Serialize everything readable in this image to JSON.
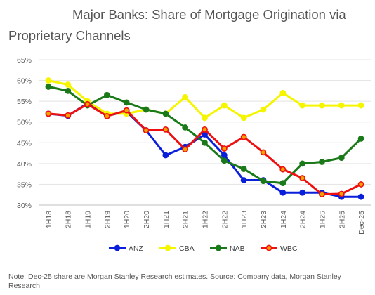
{
  "chart_data": {
    "type": "line",
    "title_line1": "Major Banks: Share of Mortgage Origination via",
    "title_line2": "Proprietary Channels",
    "categories": [
      "1H18",
      "2H18",
      "1H19",
      "2H19",
      "1H20",
      "2H20",
      "1H21",
      "2H21",
      "1H22",
      "2H22",
      "1H23",
      "2H23",
      "1H24",
      "2H24",
      "1H25",
      "2H25",
      "Dec-25"
    ],
    "y_ticks": [
      "65%",
      "60%",
      "55%",
      "50%",
      "45%",
      "40%",
      "35%",
      "30%"
    ],
    "ylim": [
      30,
      65
    ],
    "grid": true,
    "legend_position": "bottom",
    "series": [
      {
        "name": "ANZ",
        "color": "#0a1fd9",
        "marker_fill": "#0a1fd9",
        "values": [
          52,
          51.5,
          54.5,
          51.5,
          52.5,
          48,
          42,
          44,
          47,
          42,
          36,
          36,
          33,
          33,
          33,
          32,
          32
        ]
      },
      {
        "name": "CBA",
        "color": "#f5f500",
        "marker_fill": "#f5f500",
        "values": [
          60,
          59,
          55,
          52,
          52,
          53,
          52,
          56,
          51,
          54,
          51,
          53,
          57,
          54,
          54,
          54,
          54
        ]
      },
      {
        "name": "NAB",
        "color": "#1a7a1a",
        "marker_fill": "#1a7a1a",
        "values": [
          58.5,
          57.5,
          54,
          56.5,
          54.7,
          53,
          52,
          48.7,
          45,
          40.7,
          38.7,
          35.8,
          35.3,
          40,
          40.4,
          41.4,
          46
        ]
      },
      {
        "name": "WBC",
        "color": "#ee1010",
        "marker_fill": "#f5a000",
        "values": [
          52,
          51.6,
          54.3,
          51.4,
          52.8,
          48,
          48.2,
          43.4,
          48.2,
          43.6,
          46.4,
          42.7,
          38.6,
          36.5,
          32.6,
          32.7,
          35
        ]
      }
    ]
  },
  "note": "Note: Dec-25 share are Morgan Stanley Research estimates. Source: Company data, Morgan Stanley Research"
}
